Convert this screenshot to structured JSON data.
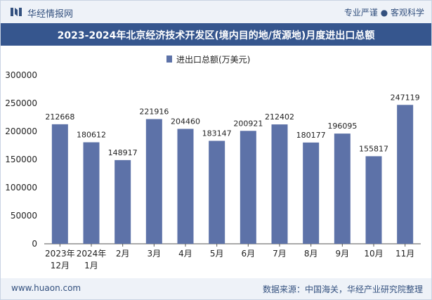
{
  "header": {
    "brand": "华经情报网",
    "slogan": "专业严谨 ● 客观科学"
  },
  "title": "2023-2024年北京经济技术开发区(境内目的地/货源地)月度进出口总额",
  "footer": {
    "website": "www.huaon.com",
    "source": "数据来源：中国海关，华经产业研究院整理"
  },
  "colors": {
    "bar": "#5d72a8",
    "title_bg": "#36568e",
    "bar_bg": "#eef2f8",
    "text": "#33507e"
  },
  "chart_data": {
    "type": "bar",
    "categories": [
      [
        "2023年",
        "12月"
      ],
      [
        "2024年",
        "1月"
      ],
      [
        "2月"
      ],
      [
        "3月"
      ],
      [
        "4月"
      ],
      [
        "5月"
      ],
      [
        "6月"
      ],
      [
        "7月"
      ],
      [
        "8月"
      ],
      [
        "9月"
      ],
      [
        "10月"
      ],
      [
        "11月"
      ]
    ],
    "series": [
      {
        "name": "进出口总额(万美元)",
        "values": [
          212668,
          180612,
          148917,
          221916,
          204460,
          183147,
          200921,
          212402,
          180177,
          196095,
          155817,
          247119
        ]
      }
    ],
    "ylim": [
      0,
      300000
    ],
    "yticks": [
      "0",
      "50000",
      "100000",
      "150000",
      "200000",
      "250000",
      "300000"
    ],
    "legend_position": "top-center",
    "grid": false
  }
}
